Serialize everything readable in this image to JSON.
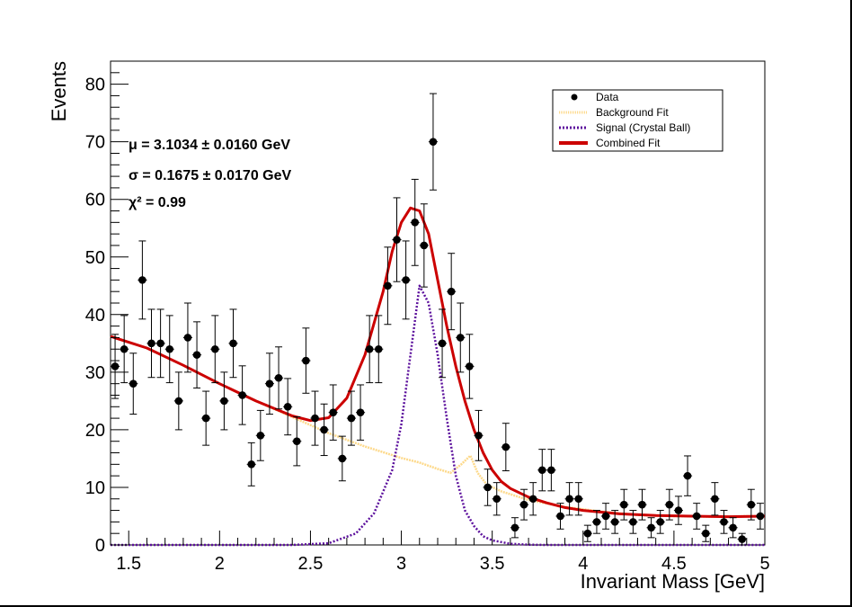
{
  "chart_data": {
    "type": "scatter",
    "xlabel": "Invariant Mass [GeV]",
    "ylabel": "Events",
    "xlim": [
      1.4,
      5.0
    ],
    "ylim": [
      0,
      84
    ],
    "x_ticks": [
      1.5,
      2,
      2.5,
      3,
      3.5,
      4,
      4.5,
      5
    ],
    "x_tick_labels": [
      "1.5",
      "2",
      "2.5",
      "3",
      "3.5",
      "4",
      "4.5",
      "5"
    ],
    "y_ticks": [
      0,
      10,
      20,
      30,
      40,
      50,
      60,
      70,
      80
    ],
    "y_tick_labels": [
      "0",
      "10",
      "20",
      "30",
      "40",
      "50",
      "60",
      "70",
      "80"
    ],
    "grid": false,
    "legend_position": "top-right",
    "legend": [
      {
        "label": "Data",
        "style": "marker"
      },
      {
        "label": "Background Fit",
        "style": "dotted-line"
      },
      {
        "label": "Signal (Crystal Ball)",
        "style": "dotted-line"
      },
      {
        "label": "Combined Fit",
        "style": "solid-line"
      }
    ],
    "annotations": [
      "μ = 3.1034 ± 0.0160 GeV",
      "σ = 0.1675 ± 0.0170 GeV",
      "χ² = 0.99"
    ],
    "colors": {
      "data": "#000000",
      "background": "#fdd98a",
      "signal": "#5b0f9c",
      "combined": "#cc0000"
    },
    "bin_half_width": 0.025,
    "series": [
      {
        "name": "Data",
        "x": [
          1.425,
          1.475,
          1.525,
          1.575,
          1.625,
          1.675,
          1.725,
          1.775,
          1.825,
          1.875,
          1.925,
          1.975,
          2.025,
          2.075,
          2.125,
          2.175,
          2.225,
          2.275,
          2.325,
          2.375,
          2.425,
          2.475,
          2.525,
          2.575,
          2.625,
          2.675,
          2.725,
          2.775,
          2.825,
          2.875,
          2.925,
          2.975,
          3.025,
          3.075,
          3.125,
          3.175,
          3.225,
          3.275,
          3.325,
          3.375,
          3.425,
          3.475,
          3.525,
          3.575,
          3.625,
          3.675,
          3.725,
          3.775,
          3.825,
          3.875,
          3.925,
          3.975,
          4.025,
          4.075,
          4.125,
          4.175,
          4.225,
          4.275,
          4.325,
          4.375,
          4.425,
          4.475,
          4.525,
          4.575,
          4.625,
          4.675,
          4.725,
          4.775,
          4.825,
          4.875,
          4.925,
          4.975
        ],
        "y": [
          31,
          34,
          28,
          46,
          35,
          35,
          34,
          25,
          36,
          33,
          22,
          34,
          25,
          35,
          26,
          14,
          19,
          28,
          29,
          24,
          18,
          32,
          22,
          20,
          23,
          15,
          22,
          23,
          34,
          34,
          45,
          53,
          46,
          56,
          52,
          70,
          35,
          44,
          36,
          31,
          19,
          10,
          8,
          17,
          3,
          7,
          8,
          13,
          13,
          5,
          8,
          8,
          2,
          4,
          5,
          4,
          7,
          4,
          7,
          3,
          4,
          7,
          6,
          12,
          5,
          2,
          8,
          4,
          3,
          1,
          7,
          5
        ]
      }
    ],
    "curves": [
      {
        "name": "Background Fit",
        "x": [
          1.4,
          1.6,
          1.8,
          2.0,
          2.2,
          2.4,
          2.6,
          2.8,
          3.0,
          3.1,
          3.2,
          3.27,
          3.33,
          3.38,
          3.42,
          3.47,
          3.55,
          3.7,
          3.9,
          4.1,
          4.3,
          4.5,
          4.7,
          4.9,
          5.0
        ],
        "y": [
          36.2,
          34.2,
          31.2,
          28.0,
          25.0,
          22.2,
          19.4,
          17.1,
          15.1,
          14.3,
          13.2,
          12.5,
          14.0,
          15.5,
          12.5,
          10.5,
          9.3,
          7.8,
          6.6,
          5.8,
          5.2,
          5.0,
          4.9,
          5.0,
          5.0
        ]
      },
      {
        "name": "Signal (Crystal Ball)",
        "x": [
          1.4,
          2.4,
          2.6,
          2.75,
          2.85,
          2.95,
          3.0,
          3.05,
          3.1,
          3.15,
          3.2,
          3.25,
          3.3,
          3.35,
          3.4,
          3.45,
          3.5,
          3.6,
          3.7,
          3.8,
          5.0
        ],
        "y": [
          0,
          0,
          0.3,
          2,
          5.5,
          13,
          21,
          33,
          45,
          42,
          33,
          22,
          12,
          6,
          3.3,
          1.5,
          0.8,
          0.2,
          0.05,
          0,
          0
        ]
      },
      {
        "name": "Combined Fit",
        "x": [
          1.4,
          1.6,
          1.8,
          2.0,
          2.2,
          2.4,
          2.5,
          2.6,
          2.7,
          2.8,
          2.9,
          2.95,
          3.0,
          3.05,
          3.1,
          3.15,
          3.2,
          3.25,
          3.3,
          3.35,
          3.4,
          3.45,
          3.5,
          3.55,
          3.6,
          3.7,
          3.8,
          3.9,
          4.0,
          4.2,
          4.4,
          4.6,
          4.8,
          5.0
        ],
        "y": [
          36.2,
          34.2,
          31.2,
          28.0,
          25.0,
          22.4,
          21.6,
          22.1,
          25.5,
          33,
          44,
          51,
          56,
          58.5,
          58,
          54,
          46,
          38,
          31,
          25,
          20,
          16,
          13,
          11,
          9.8,
          8.3,
          7.3,
          6.5,
          6.0,
          5.4,
          5.1,
          5.0,
          4.9,
          5.0
        ]
      }
    ]
  }
}
